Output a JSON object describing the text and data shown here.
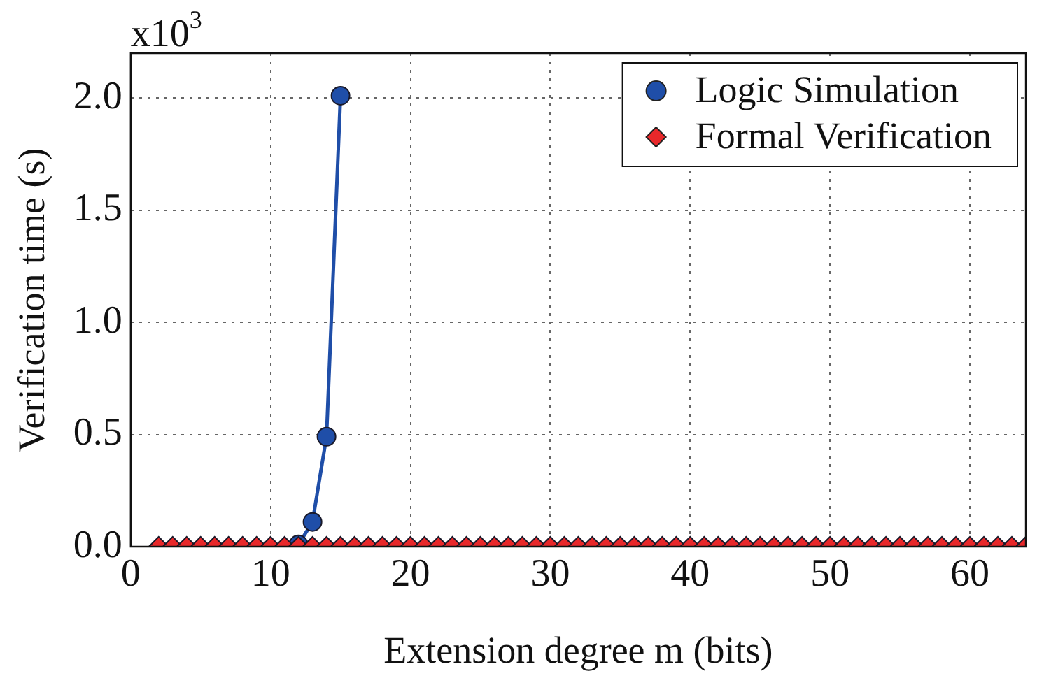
{
  "chart_data": {
    "type": "line",
    "xlabel": "Extension degree m (bits)",
    "ylabel": "Verification time (s)",
    "annotations": [
      "x10$^{3}$"
    ],
    "xlim": [
      0,
      64
    ],
    "xticks": [
      0,
      10,
      20,
      30,
      40,
      50,
      60
    ],
    "ylim": [
      0,
      2.2
    ],
    "yticks": [
      {
        "value": 0,
        "label": "0.0"
      },
      {
        "value": 0.5,
        "label": "0.5"
      },
      {
        "value": 1,
        "label": "1.0"
      },
      {
        "value": 1.5,
        "label": "1.5"
      },
      {
        "value": 2,
        "label": "2.0"
      }
    ],
    "grid": true,
    "legend": "top right",
    "series": [
      {
        "name": "Logic Simulation",
        "marker": "circle",
        "color": "#1f4ea8",
        "x": [
          12,
          13,
          14,
          15
        ],
        "values": [
          0.01,
          0.11,
          0.49,
          2.01
        ]
      },
      {
        "name": "Formal Verification",
        "type": "scatter",
        "marker": "diamond",
        "color": "#e8282a",
        "x": [
          2,
          3,
          4,
          5,
          6,
          7,
          8,
          9,
          10,
          11,
          12,
          13,
          14,
          15,
          16,
          17,
          18,
          19,
          20,
          21,
          22,
          23,
          24,
          25,
          26,
          27,
          28,
          29,
          30,
          31,
          32,
          33,
          34,
          35,
          36,
          37,
          38,
          39,
          40,
          41,
          42,
          43,
          44,
          45,
          46,
          47,
          48,
          49,
          50,
          51,
          52,
          53,
          54,
          55,
          56,
          57,
          58,
          59,
          60,
          61,
          62,
          63,
          64
        ],
        "values": [
          0,
          0,
          0,
          0,
          0,
          0,
          0,
          0,
          0,
          0,
          0,
          0,
          0,
          0,
          0,
          0,
          0,
          0,
          0,
          0,
          0,
          0,
          0,
          0,
          0,
          0,
          0,
          0,
          0,
          0,
          0,
          0,
          0,
          0,
          0,
          0,
          0,
          0,
          0,
          0,
          0,
          0,
          0,
          0,
          0,
          0,
          0,
          0,
          0,
          0,
          0,
          0,
          0,
          0,
          0,
          0,
          0,
          0,
          0,
          0,
          0,
          0,
          0
        ]
      }
    ]
  }
}
